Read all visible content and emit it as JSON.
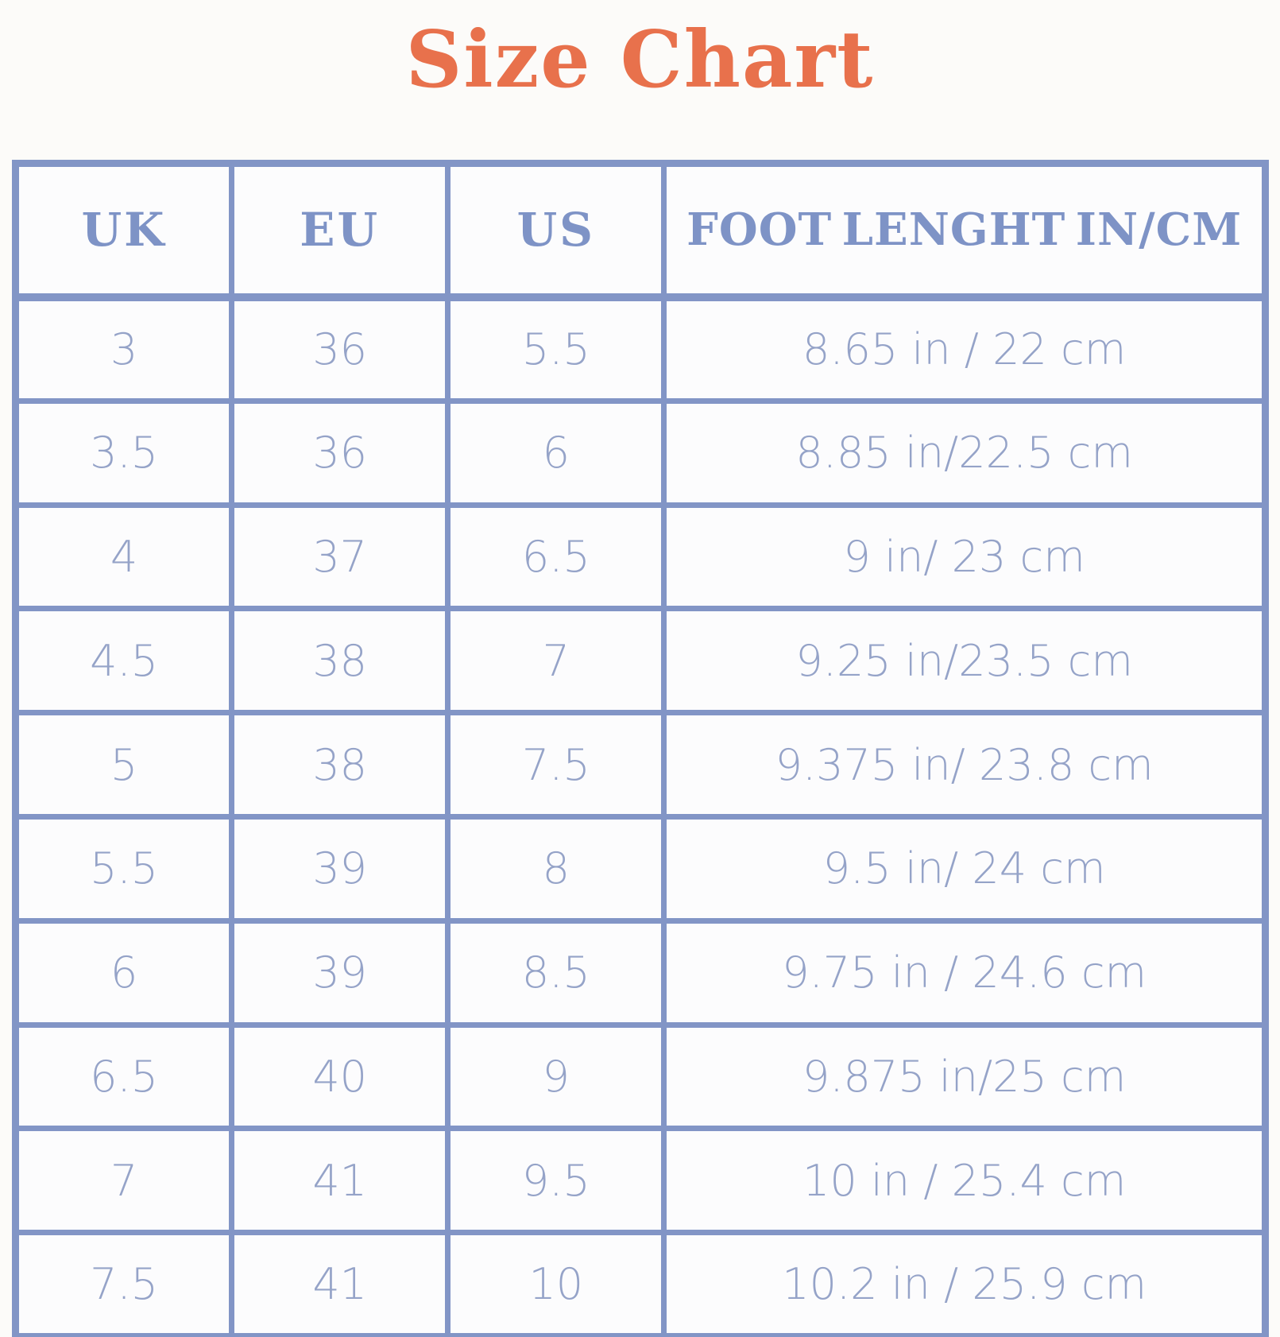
{
  "title": {
    "text": "Size Chart"
  },
  "colors": {
    "title_orange": "#E8714C",
    "header_blue": "#7E93C6",
    "border_blue": "#8295C6",
    "cell_text_blue": "#95A3C8",
    "background": "#FCFBF9"
  },
  "chart_data": {
    "type": "table",
    "title": "Size Chart",
    "columns": [
      "UK",
      "EU",
      "US",
      "FOOT LENGHT IN/CM"
    ],
    "rows": [
      [
        "3",
        "36",
        "5.5",
        "8.65 in / 22 cm"
      ],
      [
        "3.5",
        "36",
        "6",
        "8.85 in/22.5 cm"
      ],
      [
        "4",
        "37",
        "6.5",
        "9 in/ 23 cm"
      ],
      [
        "4.5",
        "38",
        "7",
        "9.25 in/23.5 cm"
      ],
      [
        "5",
        "38",
        "7.5",
        "9.375 in/ 23.8 cm"
      ],
      [
        "5.5",
        "39",
        "8",
        "9.5 in/ 24 cm"
      ],
      [
        "6",
        "39",
        "8.5",
        "9.75 in / 24.6 cm"
      ],
      [
        "6.5",
        "40",
        "9",
        "9.875 in/25 cm"
      ],
      [
        "7",
        "41",
        "9.5",
        "10 in / 25.4 cm"
      ],
      [
        "7.5",
        "41",
        "10",
        "10.2 in / 25.9 cm"
      ]
    ]
  }
}
